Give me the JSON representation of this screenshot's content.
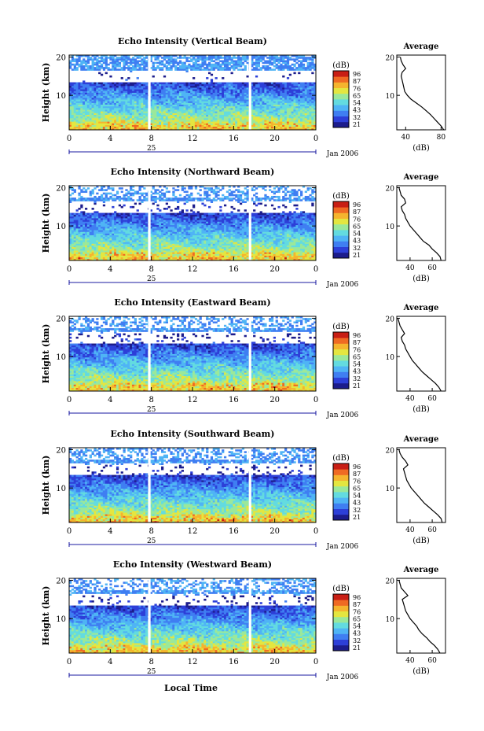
{
  "chart_data": {
    "type": "heatmap",
    "time_axis": {
      "ticks": [
        "0",
        "4",
        "8",
        "12",
        "16",
        "20",
        "0"
      ],
      "tick_values": [
        0,
        4,
        8,
        12,
        16,
        20,
        24
      ],
      "day_label": "25",
      "month_label": "Jan 2006",
      "xlabel": "Local Time",
      "xlim": [
        0,
        24
      ]
    },
    "height_axis": {
      "ylabel": "Height (km)",
      "ticks": [
        "10",
        "20"
      ],
      "tick_values": [
        10,
        20
      ],
      "ylim": [
        1,
        20.5
      ]
    },
    "colorbar": {
      "unit": "(dB)",
      "levels": [
        "96",
        "87",
        "76",
        "65",
        "54",
        "43",
        "32",
        "21"
      ]
    },
    "colormap": [
      "#1c1c8c",
      "#2d3fd8",
      "#3f7ef2",
      "#4fb4f5",
      "#63dbe0",
      "#9be89a",
      "#e4e640",
      "#f5b42e",
      "#ef6a23",
      "#c81e14"
    ],
    "data_gaps_hours": [
      7.8,
      17.6
    ],
    "average_profile": {
      "title": "Average",
      "xlabel": "(dB)"
    },
    "panels": [
      {
        "title": "Echo Intensity (Vertical Beam)",
        "avg_xticks": [
          "40",
          "80"
        ],
        "avg_xtick_values": [
          40,
          80
        ],
        "avg_xlim": [
          30,
          85
        ],
        "mean_profile": {
          "height_km": [
            1,
            2,
            3,
            4,
            5,
            6,
            7,
            8,
            9,
            10,
            11,
            12,
            13,
            14,
            15,
            16,
            17,
            18,
            19,
            20
          ],
          "db": [
            83,
            80,
            76,
            72,
            68,
            63,
            58,
            52,
            46,
            42,
            39,
            38,
            37,
            36,
            35,
            36,
            40,
            37,
            35,
            34
          ]
        }
      },
      {
        "title": "Echo Intensity (Northward Beam)",
        "avg_xticks": [
          "40",
          "60"
        ],
        "avg_xtick_values": [
          40,
          60
        ],
        "avg_xlim": [
          28,
          72
        ],
        "mean_profile": {
          "height_km": [
            1,
            2,
            3,
            4,
            5,
            6,
            7,
            8,
            9,
            10,
            11,
            12,
            13,
            14,
            15,
            16,
            17,
            18,
            19,
            20
          ],
          "db": [
            68,
            67,
            64,
            60,
            57,
            52,
            49,
            46,
            43,
            40,
            38,
            36,
            35,
            33,
            32,
            36,
            35,
            32,
            31,
            30
          ]
        }
      },
      {
        "title": "Echo Intensity (Eastward Beam)",
        "avg_xticks": [
          "40",
          "60"
        ],
        "avg_xtick_values": [
          40,
          60
        ],
        "avg_xlim": [
          28,
          72
        ],
        "mean_profile": {
          "height_km": [
            1,
            2,
            3,
            4,
            5,
            6,
            7,
            8,
            9,
            10,
            11,
            12,
            13,
            14,
            15,
            16,
            17,
            18,
            19,
            20
          ],
          "db": [
            68,
            66,
            63,
            59,
            55,
            51,
            48,
            45,
            42,
            40,
            38,
            36,
            35,
            33,
            32,
            35,
            33,
            31,
            30,
            29
          ]
        }
      },
      {
        "title": "Echo Intensity (Southward Beam)",
        "avg_xticks": [
          "40",
          "60"
        ],
        "avg_xtick_values": [
          40,
          60
        ],
        "avg_xlim": [
          28,
          72
        ],
        "mean_profile": {
          "height_km": [
            1,
            2,
            3,
            4,
            5,
            6,
            7,
            8,
            9,
            10,
            11,
            12,
            13,
            14,
            15,
            16,
            17,
            18,
            19,
            20
          ],
          "db": [
            69,
            68,
            65,
            61,
            57,
            53,
            50,
            47,
            44,
            41,
            39,
            37,
            36,
            35,
            34,
            38,
            36,
            33,
            31,
            30
          ]
        }
      },
      {
        "title": "Echo Intensity (Westward Beam)",
        "avg_xticks": [
          "40",
          "60"
        ],
        "avg_xtick_values": [
          40,
          60
        ],
        "avg_xlim": [
          28,
          72
        ],
        "mean_profile": {
          "height_km": [
            1,
            2,
            3,
            4,
            5,
            6,
            7,
            8,
            9,
            10,
            11,
            12,
            13,
            14,
            15,
            16,
            17,
            18,
            19,
            20
          ],
          "db": [
            67,
            65,
            62,
            58,
            55,
            51,
            48,
            46,
            43,
            40,
            38,
            36,
            35,
            34,
            33,
            38,
            35,
            32,
            31,
            30
          ]
        }
      }
    ]
  }
}
